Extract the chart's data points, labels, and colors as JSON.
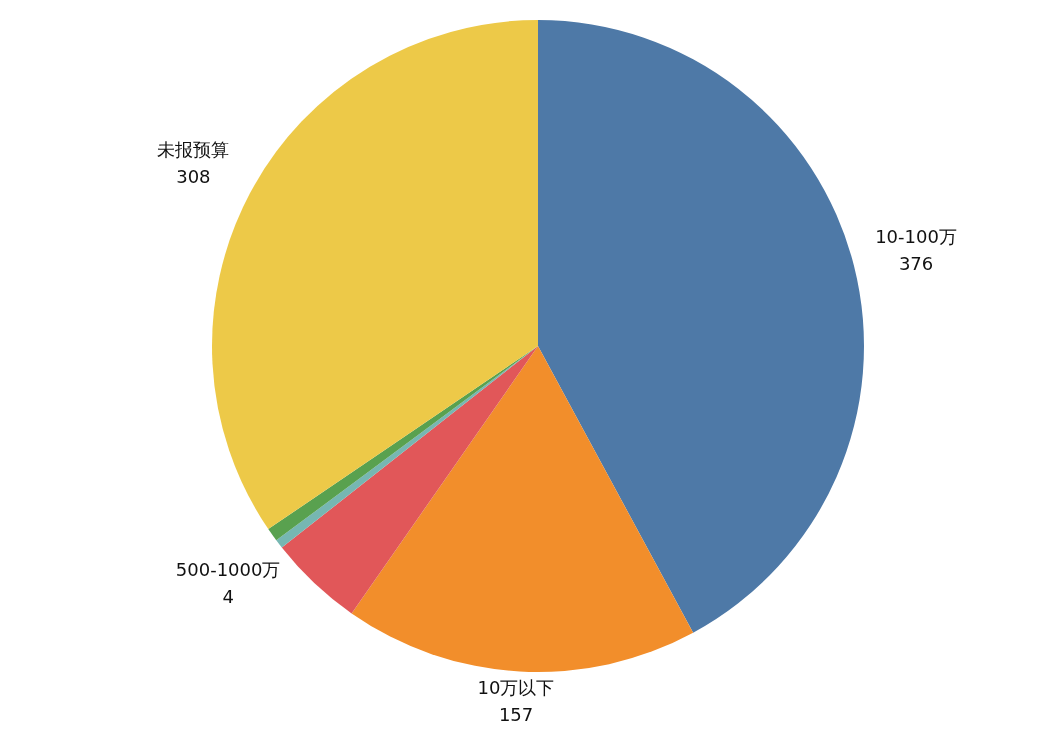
{
  "chart_data": {
    "type": "pie",
    "categories": [
      "10-100万",
      "10万以下",
      null,
      "500-1000万",
      null,
      "未报预算"
    ],
    "values": [
      376,
      157,
      42,
      4,
      6,
      308
    ],
    "colors": [
      "#4e79a7",
      "#f28e2b",
      "#e15759",
      "#76b7b2",
      "#59a14f",
      "#edc948"
    ],
    "value_labels": [
      "376",
      "157",
      null,
      "4",
      null,
      "308"
    ]
  }
}
